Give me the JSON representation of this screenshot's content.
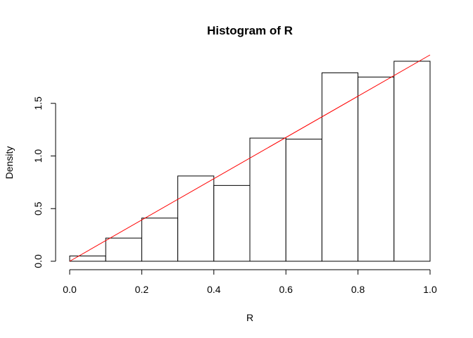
{
  "chart_data": {
    "type": "bar",
    "title": "Histogram of R",
    "xlabel": "R",
    "ylabel": "Density",
    "bins": [
      {
        "x0": 0.0,
        "x1": 0.1,
        "density": 0.05
      },
      {
        "x0": 0.1,
        "x1": 0.2,
        "density": 0.22
      },
      {
        "x0": 0.2,
        "x1": 0.3,
        "density": 0.41
      },
      {
        "x0": 0.3,
        "x1": 0.4,
        "density": 0.81
      },
      {
        "x0": 0.4,
        "x1": 0.5,
        "density": 0.72
      },
      {
        "x0": 0.5,
        "x1": 0.6,
        "density": 1.17
      },
      {
        "x0": 0.6,
        "x1": 0.7,
        "density": 1.16
      },
      {
        "x0": 0.7,
        "x1": 0.8,
        "density": 1.79
      },
      {
        "x0": 0.8,
        "x1": 0.9,
        "density": 1.75
      },
      {
        "x0": 0.9,
        "x1": 1.0,
        "density": 1.9
      }
    ],
    "line": {
      "x": [
        0.0,
        1.0
      ],
      "y": [
        0.0,
        1.96
      ],
      "color": "#ff0000"
    },
    "xlim": [
      0.0,
      1.0
    ],
    "ylim": [
      0.0,
      1.96
    ],
    "xticks": [
      0.0,
      0.2,
      0.4,
      0.6,
      0.8,
      1.0
    ],
    "xtick_labels": [
      "0.0",
      "0.2",
      "0.4",
      "0.6",
      "0.8",
      "1.0"
    ],
    "yticks": [
      0.0,
      0.5,
      1.0,
      1.5
    ],
    "ytick_labels": [
      "0.0",
      "0.5",
      "1.0",
      "1.5"
    ],
    "grid": false,
    "bar_fill": "#ffffff",
    "bar_stroke": "#000000"
  }
}
